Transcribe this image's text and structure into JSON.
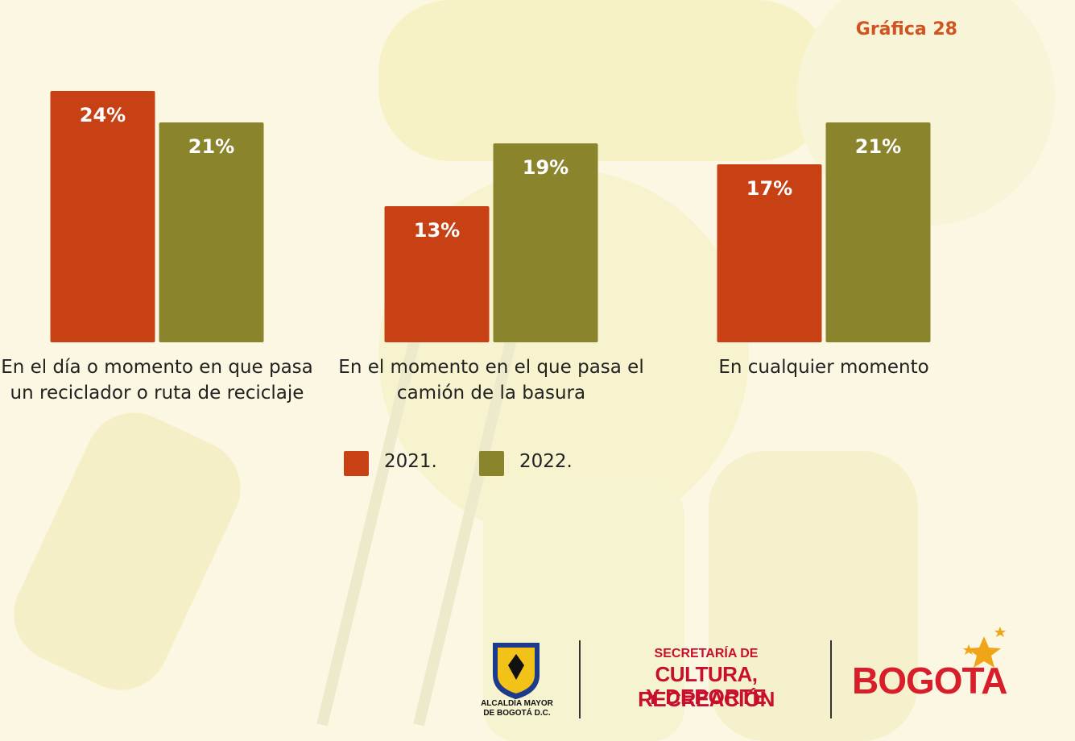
{
  "chart_data": {
    "type": "bar",
    "title": "Gráfica 28",
    "categories": [
      "En el día o momento en que pasa un reciclador o ruta de reciclaje",
      "En el momento en el que pasa el camión de la basura",
      "En cualquier momento"
    ],
    "series": [
      {
        "name": "2021.",
        "color": "#c74115",
        "values": [
          24,
          13,
          17
        ],
        "value_labels": [
          "24%",
          "13%",
          "17%"
        ]
      },
      {
        "name": "2022.",
        "color": "#8a852c",
        "values": [
          21,
          19,
          21
        ],
        "value_labels": [
          "21%",
          "19%",
          "21%"
        ]
      }
    ]
  },
  "footer": {
    "alcaldia": "ALCALDÍA MAYOR DE BOGOTÁ D.C.",
    "secretaria_top": "SECRETARÍA DE",
    "secretaria_main": "CULTURA, RECREACIÓN",
    "secretaria_bottom": "Y DEPORTE",
    "bogota": "BOGOTA"
  }
}
